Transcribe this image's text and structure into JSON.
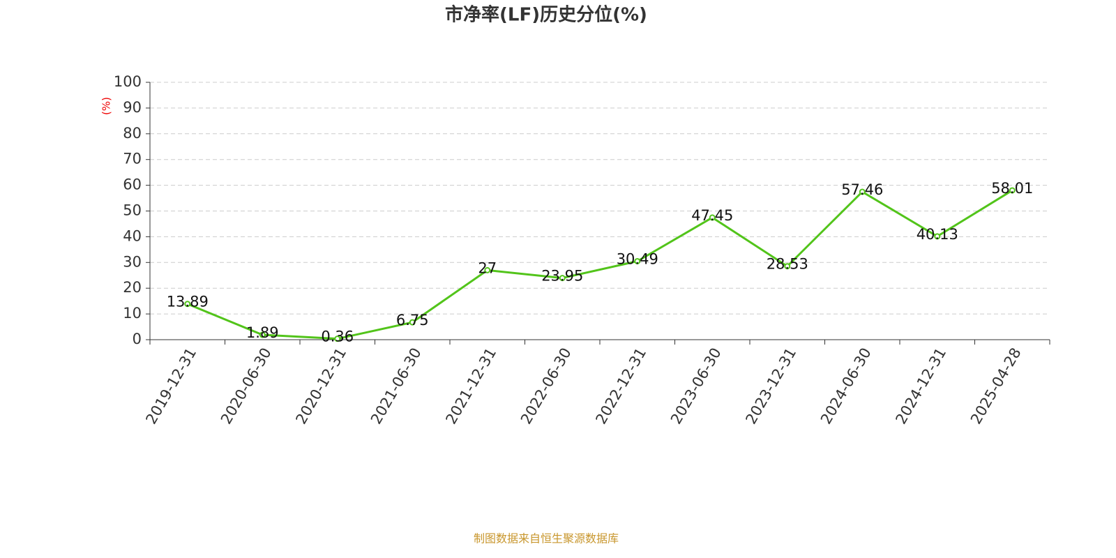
{
  "chart_data": {
    "type": "line",
    "title": "市净率(LF)历史分位(%)",
    "y_label": "(%)",
    "categories": [
      "2019-12-31",
      "2020-06-30",
      "2020-12-31",
      "2021-06-30",
      "2021-12-31",
      "2022-06-30",
      "2022-12-31",
      "2023-06-30",
      "2023-12-31",
      "2024-06-30",
      "2024-12-31",
      "2025-04-28"
    ],
    "values": [
      13.89,
      1.89,
      0.36,
      6.75,
      27,
      23.95,
      30.49,
      47.45,
      28.53,
      57.46,
      40.13,
      58.01
    ],
    "color": "#52c41a",
    "ylim": [
      0,
      100
    ],
    "yticks": [
      0,
      10,
      20,
      30,
      40,
      50,
      60,
      70,
      80,
      90,
      100
    ],
    "grid": true,
    "source": "制图数据来自恒生聚源数据库"
  }
}
